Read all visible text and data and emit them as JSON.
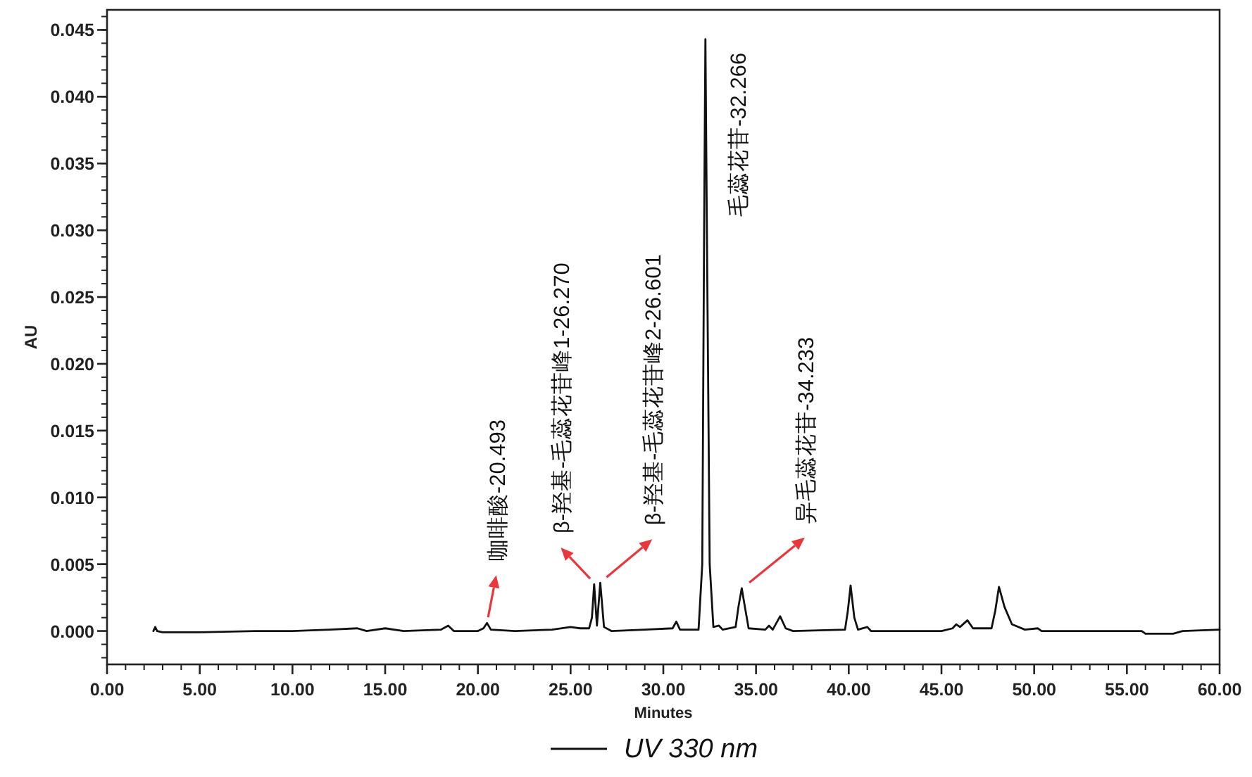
{
  "chart_data": {
    "type": "line",
    "xlabel": "Minutes",
    "ylabel": "AU",
    "legend": "bottom",
    "grid": false,
    "marker": "none",
    "line_style": "solid",
    "xlim": [
      0,
      60
    ],
    "ylim": [
      -0.0025,
      0.0465
    ],
    "xticks": [
      {
        "value": 0,
        "label": "0.00"
      },
      {
        "value": 5,
        "label": "5.00"
      },
      {
        "value": 10,
        "label": "10.00"
      },
      {
        "value": 15,
        "label": "15.00"
      },
      {
        "value": 20,
        "label": "20.00"
      },
      {
        "value": 25,
        "label": "25.00"
      },
      {
        "value": 30,
        "label": "30.00"
      },
      {
        "value": 35,
        "label": "35.00"
      },
      {
        "value": 40,
        "label": "40.00"
      },
      {
        "value": 45,
        "label": "45.00"
      },
      {
        "value": 50,
        "label": "50.00"
      },
      {
        "value": 55,
        "label": "55.00"
      },
      {
        "value": 60,
        "label": "60.00"
      }
    ],
    "yticks": [
      {
        "value": 0,
        "label": "0.000"
      },
      {
        "value": 0.005,
        "label": "0.005"
      },
      {
        "value": 0.01,
        "label": "0.010"
      },
      {
        "value": 0.015,
        "label": "0.015"
      },
      {
        "value": 0.02,
        "label": "0.020"
      },
      {
        "value": 0.025,
        "label": "0.025"
      },
      {
        "value": 0.03,
        "label": "0.030"
      },
      {
        "value": 0.035,
        "label": "0.035"
      },
      {
        "value": 0.04,
        "label": "0.040"
      },
      {
        "value": 0.045,
        "label": "0.045"
      }
    ],
    "series": [
      {
        "name": "UV 330 nm",
        "color": "#111111",
        "x": [
          2.5,
          2.6,
          2.7,
          3,
          5,
          8,
          10,
          12,
          13.5,
          14,
          15,
          16,
          18,
          18.4,
          18.7,
          20,
          20.3,
          20.49,
          20.7,
          22,
          24,
          25,
          25.5,
          26,
          26.15,
          26.27,
          26.42,
          26.6,
          26.8,
          27.2,
          29,
          30.5,
          30.7,
          30.9,
          31.9,
          32.1,
          32.2,
          32.27,
          32.35,
          32.5,
          32.7,
          33,
          33.2,
          33.9,
          34.05,
          34.23,
          34.4,
          34.6,
          35.5,
          35.7,
          35.9,
          36.3,
          36.6,
          37,
          39.8,
          39.95,
          40.1,
          40.3,
          40.5,
          41,
          41.2,
          45,
          45.6,
          45.8,
          46,
          46.4,
          46.7,
          47.7,
          47.9,
          48.1,
          48.4,
          48.8,
          49.5,
          50.2,
          50.4,
          55.8,
          56,
          57.5,
          58,
          60
        ],
        "values": [
          0,
          0.0003,
          0,
          -0.0001,
          -0.0001,
          0,
          0,
          0.0001,
          0.0002,
          0,
          0.0002,
          0,
          0.0001,
          0.0004,
          0,
          0,
          0.0002,
          0.0006,
          0.0001,
          0,
          0.0001,
          0.0003,
          0.0002,
          0.0002,
          0.001,
          0.0035,
          0.0004,
          0.0036,
          0.0003,
          0,
          0.0001,
          0.0002,
          0.0007,
          0.0001,
          0.0001,
          0.005,
          0.03,
          0.0443,
          0.03,
          0.005,
          0.0003,
          0.0004,
          0.0001,
          0.0003,
          0.0018,
          0.0032,
          0.0018,
          0.0002,
          0.0001,
          0.0004,
          0.0001,
          0.0011,
          0.0002,
          0,
          0.0001,
          0.0015,
          0.0034,
          0.001,
          0.0001,
          0.0003,
          0,
          0,
          0.0002,
          0.0005,
          0.0003,
          0.0008,
          0.0002,
          0.0002,
          0.0015,
          0.0033,
          0.0018,
          0.0005,
          0.0001,
          0.0002,
          0,
          0,
          -0.0002,
          -0.0002,
          0,
          0.0001
        ]
      }
    ],
    "annotations": [
      {
        "text": "咖啡酸-20.493",
        "x": 20.49,
        "y": 0.0006
      },
      {
        "text": "β-羟基-毛蕊花苷峰1-26.270",
        "x": 26.27,
        "y": 0.0035
      },
      {
        "text": "β-羟基-毛蕊花苷峰2-26.601",
        "x": 26.6,
        "y": 0.0036
      },
      {
        "text": "毛蕊花苷-32.266",
        "x": 32.27,
        "y": 0.0443
      },
      {
        "text": "异毛蕊花苷-34.233",
        "x": 34.23,
        "y": 0.0032
      }
    ]
  }
}
